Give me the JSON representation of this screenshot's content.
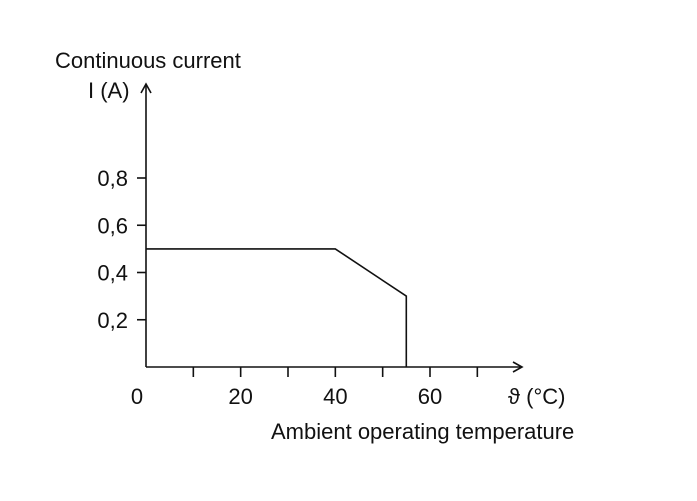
{
  "chart_data": {
    "type": "line",
    "title": "",
    "ylabel_line1": "Continuous current",
    "ylabel_line2": "I (A)",
    "xunit_label": "ϑ (°C)",
    "xlabel": "Ambient operating temperature",
    "xlim": [
      0,
      80
    ],
    "ylim": [
      0,
      1.0
    ],
    "x_tick_labels": [
      {
        "value": 0,
        "label": "0"
      },
      {
        "value": 20,
        "label": "20"
      },
      {
        "value": 40,
        "label": "40"
      },
      {
        "value": 60,
        "label": "60"
      }
    ],
    "x_minor_ticks": [
      10,
      30,
      50,
      70
    ],
    "y_tick_labels": [
      {
        "value": 0.2,
        "label": "0,2"
      },
      {
        "value": 0.4,
        "label": "0,4"
      },
      {
        "value": 0.6,
        "label": "0,6"
      },
      {
        "value": 0.8,
        "label": "0,8"
      }
    ],
    "series": [
      {
        "x": [
          0,
          40,
          55,
          55
        ],
        "y": [
          0.5,
          0.5,
          0.3,
          0
        ]
      }
    ],
    "grid": false,
    "legend": "none"
  }
}
